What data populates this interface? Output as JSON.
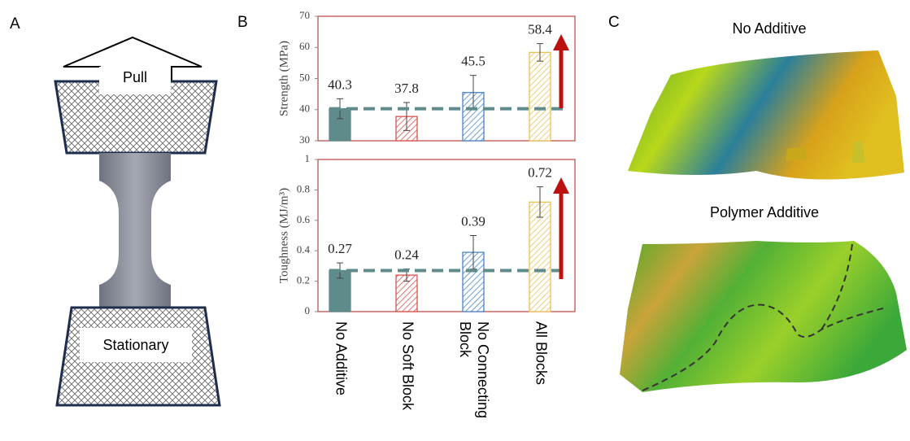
{
  "panels": {
    "a_label": "A",
    "pull": "Pull",
    "stationary": "Stationary",
    "b_label": "B",
    "c_label": "C",
    "c_top_title": "No Additive",
    "c_bottom_title": "Polymer Additive"
  },
  "chart_data": [
    {
      "type": "bar",
      "y_label": "Strength (MPa)",
      "values": [
        40.3,
        37.8,
        45.5,
        58.4
      ],
      "errors": [
        3.2,
        4.5,
        5.5,
        2.8
      ],
      "colors": [
        "#5f8b8b",
        "#d9534f",
        "#4a86c5",
        "#e8c15a"
      ],
      "hatched": [
        false,
        true,
        true,
        true
      ],
      "ylim": [
        30,
        70
      ],
      "yticks": [
        30,
        40,
        50,
        60,
        70
      ]
    },
    {
      "type": "bar",
      "y_label": "Toughness (MJ/m³)",
      "categories": [
        "No Additive",
        "No Soft Block",
        "No Connecting Block",
        "All Blocks"
      ],
      "values": [
        0.27,
        0.24,
        0.39,
        0.72
      ],
      "errors": [
        0.05,
        0.04,
        0.11,
        0.1
      ],
      "colors": [
        "#5f8b8b",
        "#d9534f",
        "#4a86c5",
        "#e8c15a"
      ],
      "hatched": [
        false,
        true,
        true,
        true
      ],
      "ylim": [
        0,
        1
      ],
      "yticks": [
        0,
        0.2,
        0.4,
        0.6,
        0.8,
        1
      ]
    }
  ]
}
